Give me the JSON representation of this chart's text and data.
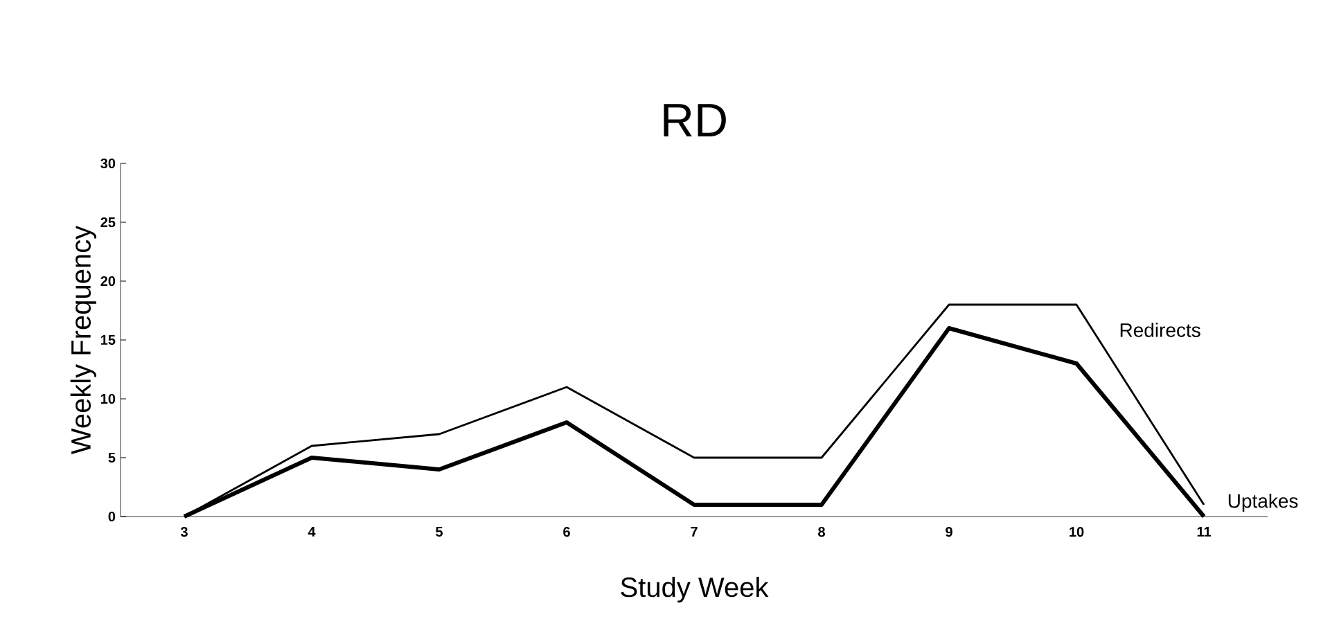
{
  "chart_data": {
    "type": "line",
    "title": "RD",
    "xlabel": "Study Week",
    "ylabel": "Weekly Frequency",
    "x": [
      3,
      4,
      5,
      6,
      7,
      8,
      9,
      10,
      11
    ],
    "series": [
      {
        "name": "Redirects",
        "color": "#000000",
        "values": [
          0,
          6,
          7,
          11,
          5,
          5,
          18,
          18,
          1
        ]
      },
      {
        "name": "Uptakes",
        "color": "#000000",
        "values": [
          0,
          5,
          4,
          8,
          1,
          1,
          16,
          13,
          0
        ]
      }
    ],
    "xlim": [
      2.5,
      11.5
    ],
    "ylim": [
      0,
      30
    ],
    "xticks": [
      3,
      4,
      5,
      6,
      7,
      8,
      9,
      10,
      11
    ],
    "yticks": [
      0,
      5,
      10,
      15,
      20,
      25,
      30
    ],
    "grid": false,
    "legend": false,
    "marker": "none",
    "line_style": "solid"
  }
}
